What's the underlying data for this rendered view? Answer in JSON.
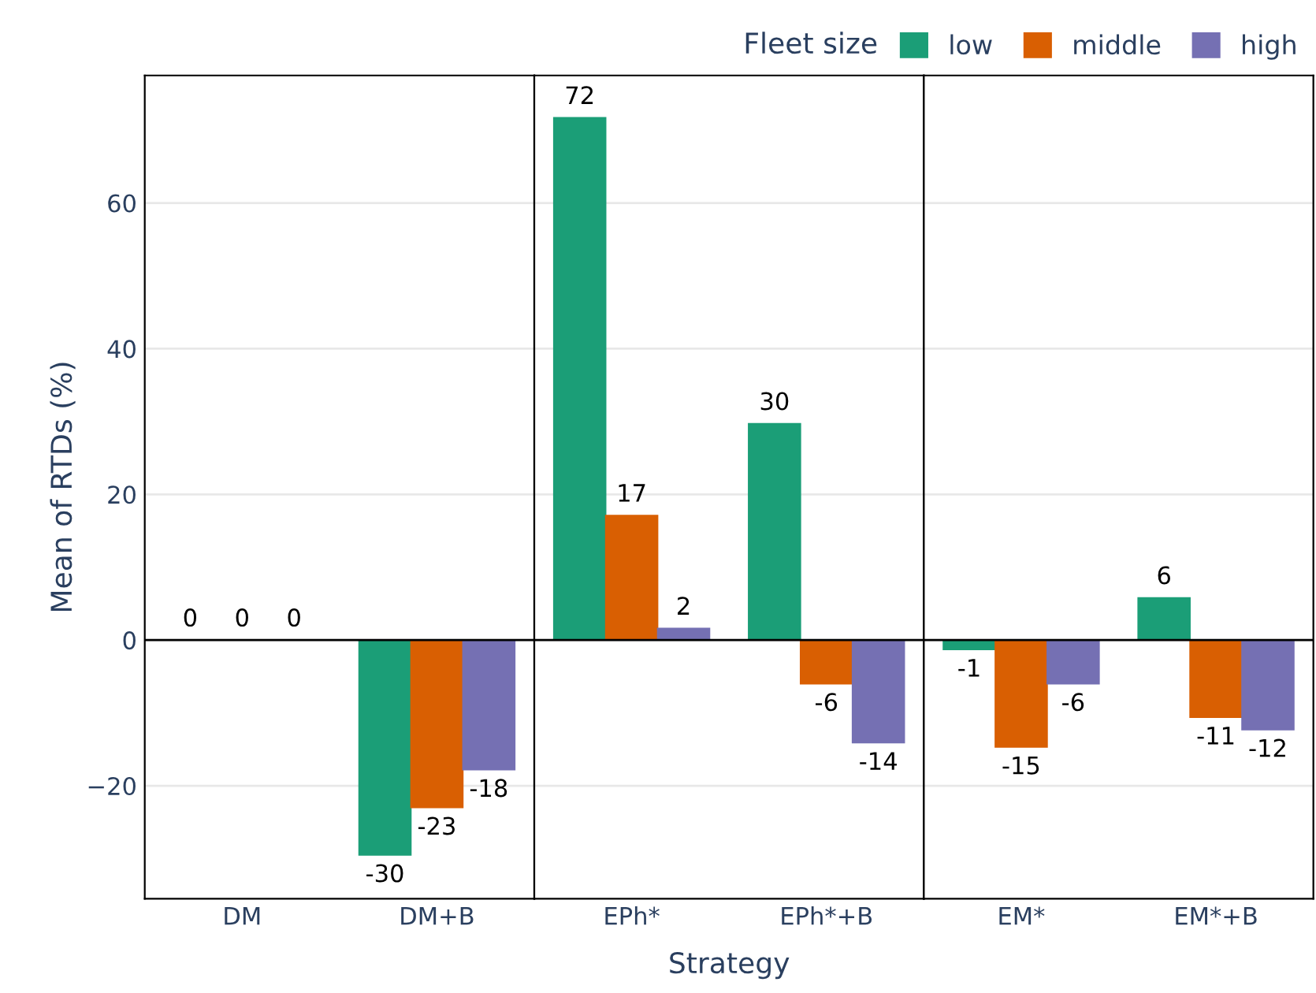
{
  "chart_data": [
    {
      "type": "bar",
      "ylabel": "Mean of RTDs (%)",
      "categories": [
        "DM",
        "DM+B"
      ],
      "ylim": [
        -35.5,
        77.5
      ],
      "yticks": [
        {
          "value": -20,
          "label": "−20"
        },
        0,
        20,
        40,
        60
      ],
      "grid": "y",
      "ref_lines": [
        {
          "axis": "y",
          "value": 0,
          "color": "#000000"
        }
      ],
      "series": [
        {
          "color": "#1b9e77",
          "values": [
            0,
            -29.5
          ],
          "value_labels": [
            "0",
            "-30"
          ]
        },
        {
          "color": "#d95f02",
          "values": [
            0,
            -23
          ],
          "value_labels": [
            "0",
            "-23"
          ]
        },
        {
          "color": "#7570b3",
          "values": [
            0,
            -17.8
          ],
          "value_labels": [
            "0",
            "-18"
          ]
        }
      ]
    },
    {
      "type": "bar",
      "xlabel": "Strategy",
      "categories": [
        "EPh*",
        "EPh*+B"
      ],
      "ylim": [
        -35.5,
        77.5
      ],
      "yticks": [
        -20,
        0,
        20,
        40,
        60
      ],
      "grid": "y",
      "tick_labels": "x",
      "ref_lines": [
        {
          "axis": "y",
          "value": 0,
          "color": "#000000"
        }
      ],
      "series": [
        {
          "color": "#1b9e77",
          "values": [
            71.7,
            29.7
          ],
          "value_labels": [
            "72",
            "30"
          ]
        },
        {
          "color": "#d95f02",
          "values": [
            17.1,
            -6
          ],
          "value_labels": [
            "17",
            "-6"
          ]
        },
        {
          "color": "#7570b3",
          "values": [
            1.6,
            -14.1
          ],
          "value_labels": [
            "2",
            "-14"
          ]
        }
      ]
    },
    {
      "type": "bar",
      "categories": [
        "EM*",
        "EM*+B"
      ],
      "ylim": [
        -35.5,
        77.5
      ],
      "yticks": [
        -20,
        0,
        20,
        40,
        60
      ],
      "grid": "y",
      "tick_labels": "x",
      "ref_lines": [
        {
          "axis": "y",
          "value": 0,
          "color": "#000000"
        }
      ],
      "legend": "top",
      "legend_title": "Fleet size",
      "series": [
        {
          "name": "low",
          "color": "#1b9e77",
          "values": [
            -1.3,
            5.8
          ],
          "value_labels": [
            "-1",
            "6"
          ]
        },
        {
          "name": "middle",
          "color": "#d95f02",
          "values": [
            -14.7,
            -10.6
          ],
          "value_labels": [
            "-15",
            "-11"
          ]
        },
        {
          "name": "high",
          "color": "#7570b3",
          "values": [
            -6,
            -12.3
          ],
          "value_labels": [
            "-6",
            "-12"
          ]
        }
      ]
    }
  ]
}
